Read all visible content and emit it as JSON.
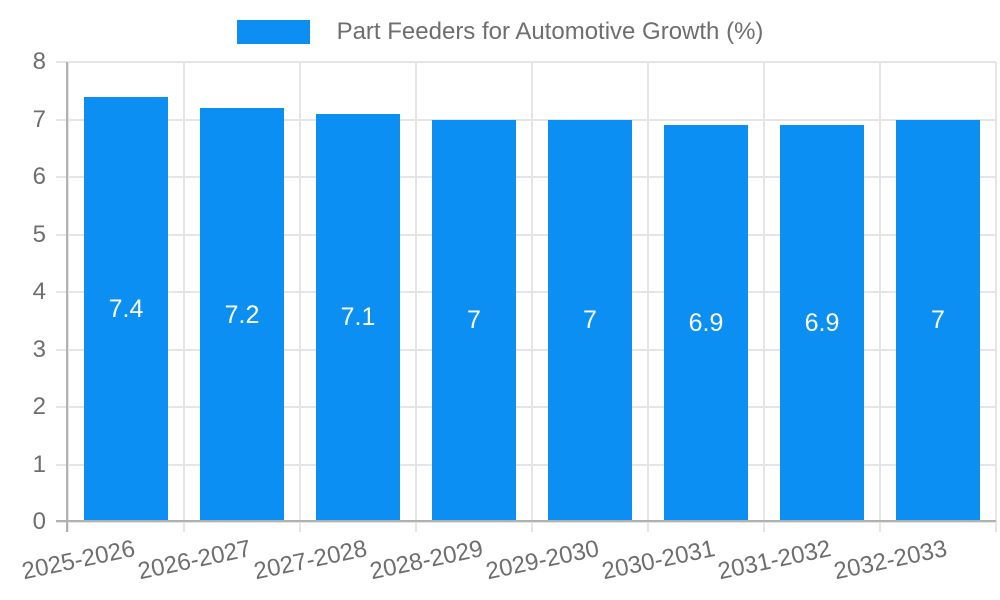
{
  "legend": {
    "label": "Part Feeders for Automotive Growth (%)"
  },
  "colors": {
    "bar": "#0b8ff2",
    "bar_label": "#ffffff",
    "grid": "#e5e5e5",
    "axis": "#b1b1b1",
    "tick_label": "#6e6e6e",
    "background": "#ffffff"
  },
  "chart_data": {
    "type": "bar",
    "title": "Part Feeders for Automotive Growth (%)",
    "categories": [
      "2025-2026",
      "2026-2027",
      "2027-2028",
      "2028-2029",
      "2029-2030",
      "2030-2031",
      "2031-2032",
      "2032-2033"
    ],
    "values": [
      7.4,
      7.2,
      7.1,
      7,
      7,
      6.9,
      6.9,
      7
    ],
    "bar_value_labels": [
      "7.4",
      "7.2",
      "7.1",
      "7",
      "7",
      "6.9",
      "6.9",
      "7"
    ],
    "xlabel": "",
    "ylabel": "",
    "ylim": [
      0,
      8
    ],
    "yticks": [
      0,
      1,
      2,
      3,
      4,
      5,
      6,
      7,
      8
    ],
    "grid": true,
    "legend_position": "top",
    "x_tick_rotation_deg": -12
  }
}
